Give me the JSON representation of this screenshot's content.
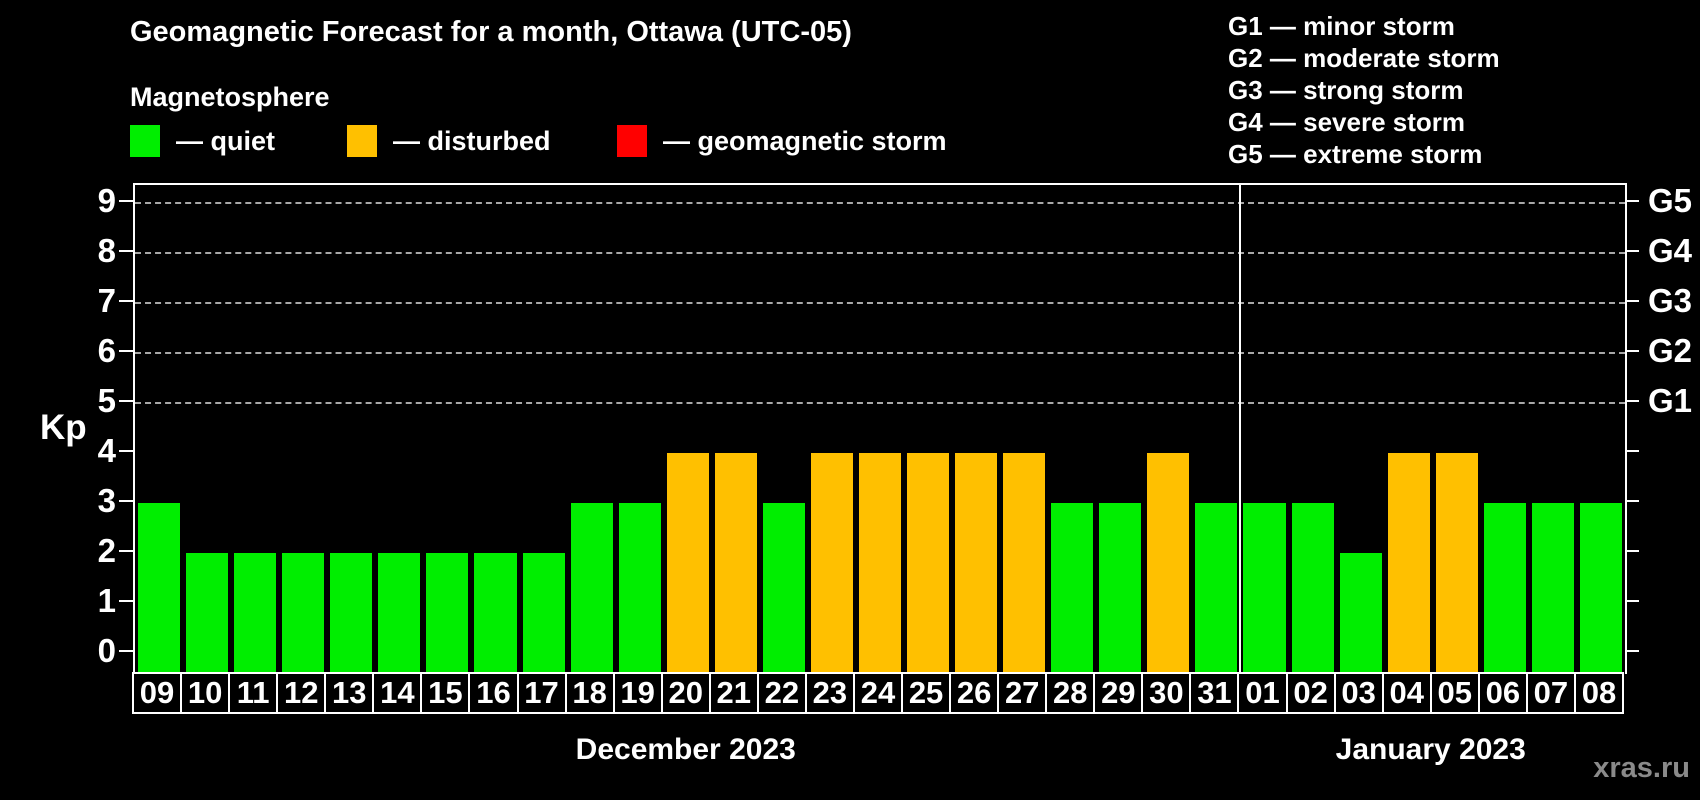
{
  "header": {
    "title": "Geomagnetic Forecast for a month, Ottawa (UTC-05)",
    "subtitle": "Magnetosphere"
  },
  "legend": {
    "items": [
      {
        "key": "quiet",
        "label": "— quiet",
        "color": "#00ee00"
      },
      {
        "key": "disturbed",
        "label": "— disturbed",
        "color": "#ffc000"
      },
      {
        "key": "storm",
        "label": "— geomagnetic storm",
        "color": "#ff0000"
      }
    ]
  },
  "g_legend": {
    "lines": [
      "G1 — minor storm",
      "G2 — moderate storm",
      "G3 — strong storm",
      "G4 — severe storm",
      "G5 — extreme storm"
    ]
  },
  "axis": {
    "kp_label": "Kp",
    "kp_ticks": [
      "0",
      "1",
      "2",
      "3",
      "4",
      "5",
      "6",
      "7",
      "8",
      "9"
    ],
    "g_labels": [
      {
        "kp": 5,
        "label": "G1"
      },
      {
        "kp": 6,
        "label": "G2"
      },
      {
        "kp": 7,
        "label": "G3"
      },
      {
        "kp": 8,
        "label": "G4"
      },
      {
        "kp": 9,
        "label": "G5"
      }
    ]
  },
  "chart_data": {
    "type": "bar",
    "title": "Geomagnetic Forecast for a month, Ottawa (UTC-05)",
    "xlabel": "",
    "ylabel": "Kp",
    "ylim": [
      0,
      9
    ],
    "grid": "dashed horizontal lines at Kp 5,6,7,8,9 only",
    "gridline_kp": [
      5,
      6,
      7,
      8,
      9
    ],
    "legend_position": "top-left",
    "categories": [
      "09",
      "10",
      "11",
      "12",
      "13",
      "14",
      "15",
      "16",
      "17",
      "18",
      "19",
      "20",
      "21",
      "22",
      "23",
      "24",
      "25",
      "26",
      "27",
      "28",
      "29",
      "30",
      "31",
      "01",
      "02",
      "03",
      "04",
      "05",
      "06",
      "07",
      "08"
    ],
    "values": [
      3,
      2,
      2,
      2,
      2,
      2,
      2,
      2,
      2,
      3,
      3,
      4,
      4,
      3,
      4,
      4,
      4,
      4,
      4,
      3,
      3,
      4,
      3,
      3,
      3,
      2,
      4,
      4,
      3,
      3,
      3
    ],
    "statuses": [
      "quiet",
      "quiet",
      "quiet",
      "quiet",
      "quiet",
      "quiet",
      "quiet",
      "quiet",
      "quiet",
      "quiet",
      "quiet",
      "disturbed",
      "disturbed",
      "quiet",
      "disturbed",
      "disturbed",
      "disturbed",
      "disturbed",
      "disturbed",
      "quiet",
      "quiet",
      "disturbed",
      "quiet",
      "quiet",
      "quiet",
      "quiet",
      "disturbed",
      "disturbed",
      "quiet",
      "quiet",
      "quiet"
    ],
    "month_split_index": 23,
    "months": [
      {
        "label": "December 2023",
        "start_index": 0,
        "day_count": 23
      },
      {
        "label": "January 2023",
        "start_index": 23,
        "day_count": 8
      }
    ]
  },
  "watermark": "xras.ru"
}
